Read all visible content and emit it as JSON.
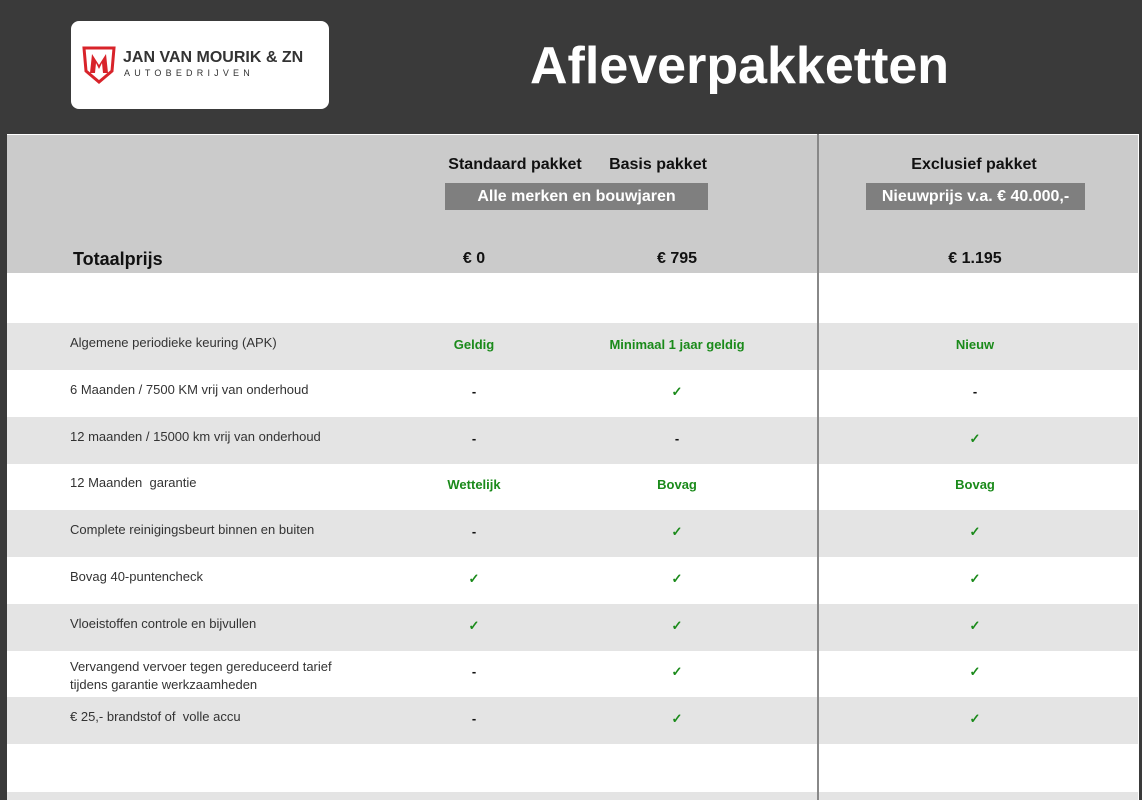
{
  "header": {
    "title": "Afleverpakketten",
    "logo": {
      "name": "JAN VAN MOURIK & ZN",
      "sub": "AUTOBEDRIJVEN",
      "brand_color": "#d8232a"
    }
  },
  "packages": {
    "standaard": "Standaard pakket",
    "basis": "Basis pakket",
    "exclusief": "Exclusief pakket",
    "pill_left": "Alle merken en bouwjaren",
    "pill_right": "Nieuwprijs v.a. € 40.000,-"
  },
  "price": {
    "label": "Totaalprijs",
    "standaard": "€ 0",
    "basis": "€ 795",
    "exclusief": "€ 1.195"
  },
  "rows": [
    {
      "label": "Algemene periodieke keuring (APK)",
      "standaard": "Geldig",
      "basis": "Minimaal 1 jaar geldig",
      "exclusief": "Nieuw"
    },
    {
      "label": "6 Maanden / 7500 KM vrij van onderhoud",
      "standaard": "-",
      "basis": "✓",
      "exclusief": "-"
    },
    {
      "label": "12 maanden / 15000 km vrij van onderhoud",
      "standaard": "-",
      "basis": "-",
      "exclusief": "✓"
    },
    {
      "label": "12 Maanden  garantie",
      "standaard": "Wettelijk",
      "basis": "Bovag",
      "exclusief": "Bovag"
    },
    {
      "label": "Complete reinigingsbeurt binnen en buiten",
      "standaard": "-",
      "basis": "✓",
      "exclusief": "✓"
    },
    {
      "label": "Bovag 40-puntencheck",
      "standaard": "✓",
      "basis": "✓",
      "exclusief": "✓"
    },
    {
      "label": "Vloeistoffen controle en bijvullen",
      "standaard": "✓",
      "basis": "✓",
      "exclusief": "✓"
    },
    {
      "label": "Vervangend vervoer tegen gereduceerd tarief\ntijdens garantie werkzaamheden",
      "standaard": "-",
      "basis": "✓",
      "exclusief": "✓"
    },
    {
      "label": "€ 25,- brandstof of  volle accu",
      "standaard": "-",
      "basis": "✓",
      "exclusief": "✓"
    }
  ],
  "colors": {
    "header_bg": "#3a3a3a",
    "check": "#1a8a1a",
    "band": "#e4e4e4"
  }
}
